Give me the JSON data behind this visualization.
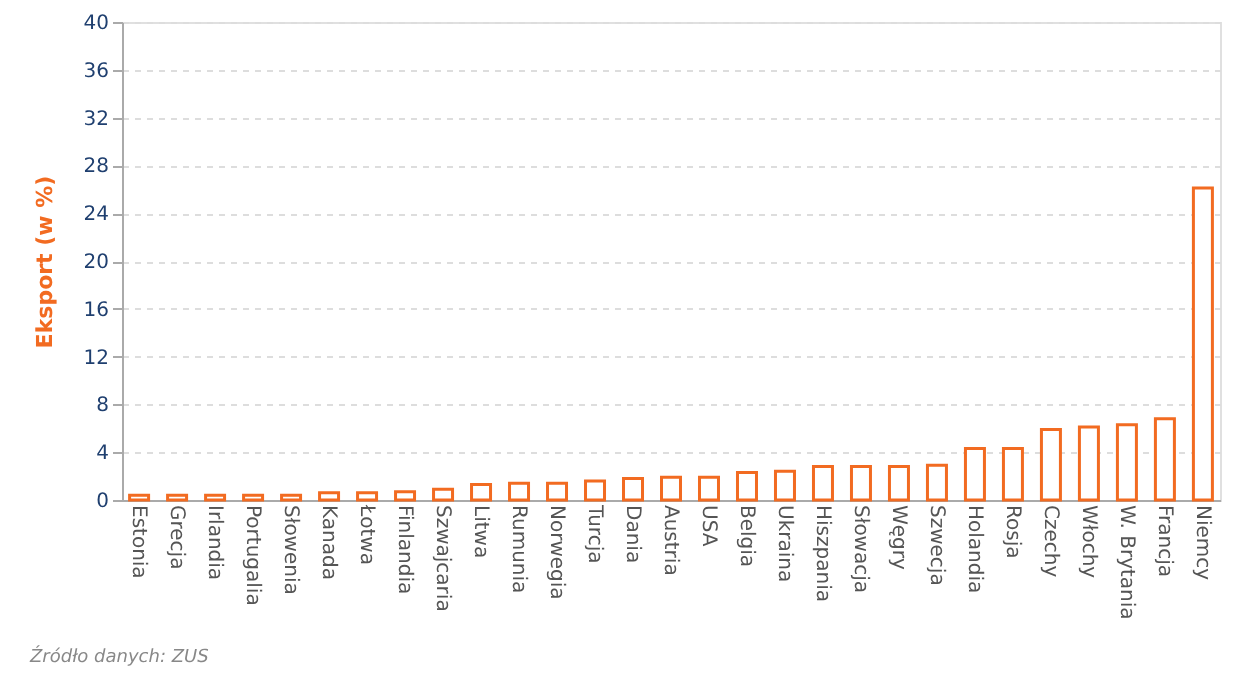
{
  "chart_data": {
    "type": "bar",
    "ylabel": "Eksport (w %)",
    "categories": [
      "Estonia",
      "Grecja",
      "Irlandia",
      "Portugalia",
      "Słowenia",
      "Kanada",
      "Łotwa",
      "Finlandia",
      "Szwajcaria",
      "Litwa",
      "Rumunia",
      "Norwegia",
      "Turcja",
      "Dania",
      "Austria",
      "USA",
      "Belgia",
      "Ukraina",
      "Hiszpania",
      "Słowacja",
      "Węgry",
      "Szwecja",
      "Holandia",
      "Rosja",
      "Czechy",
      "Włochy",
      "W. Brytania",
      "Francja",
      "Niemcy"
    ],
    "values": [
      0.4,
      0.4,
      0.4,
      0.4,
      0.4,
      0.6,
      0.6,
      0.7,
      0.9,
      1.3,
      1.4,
      1.4,
      1.6,
      1.8,
      1.9,
      1.9,
      2.3,
      2.4,
      2.8,
      2.8,
      2.8,
      2.9,
      4.3,
      4.3,
      5.9,
      6.1,
      6.3,
      6.8,
      26.1
    ],
    "color": "#f26b21",
    "ylim": [
      0,
      40
    ],
    "yticks": [
      0,
      4,
      8,
      12,
      16,
      20,
      24,
      28,
      32,
      36,
      40
    ],
    "grid": "y",
    "annotations": [
      "Źródło danych: ZUS"
    ]
  }
}
